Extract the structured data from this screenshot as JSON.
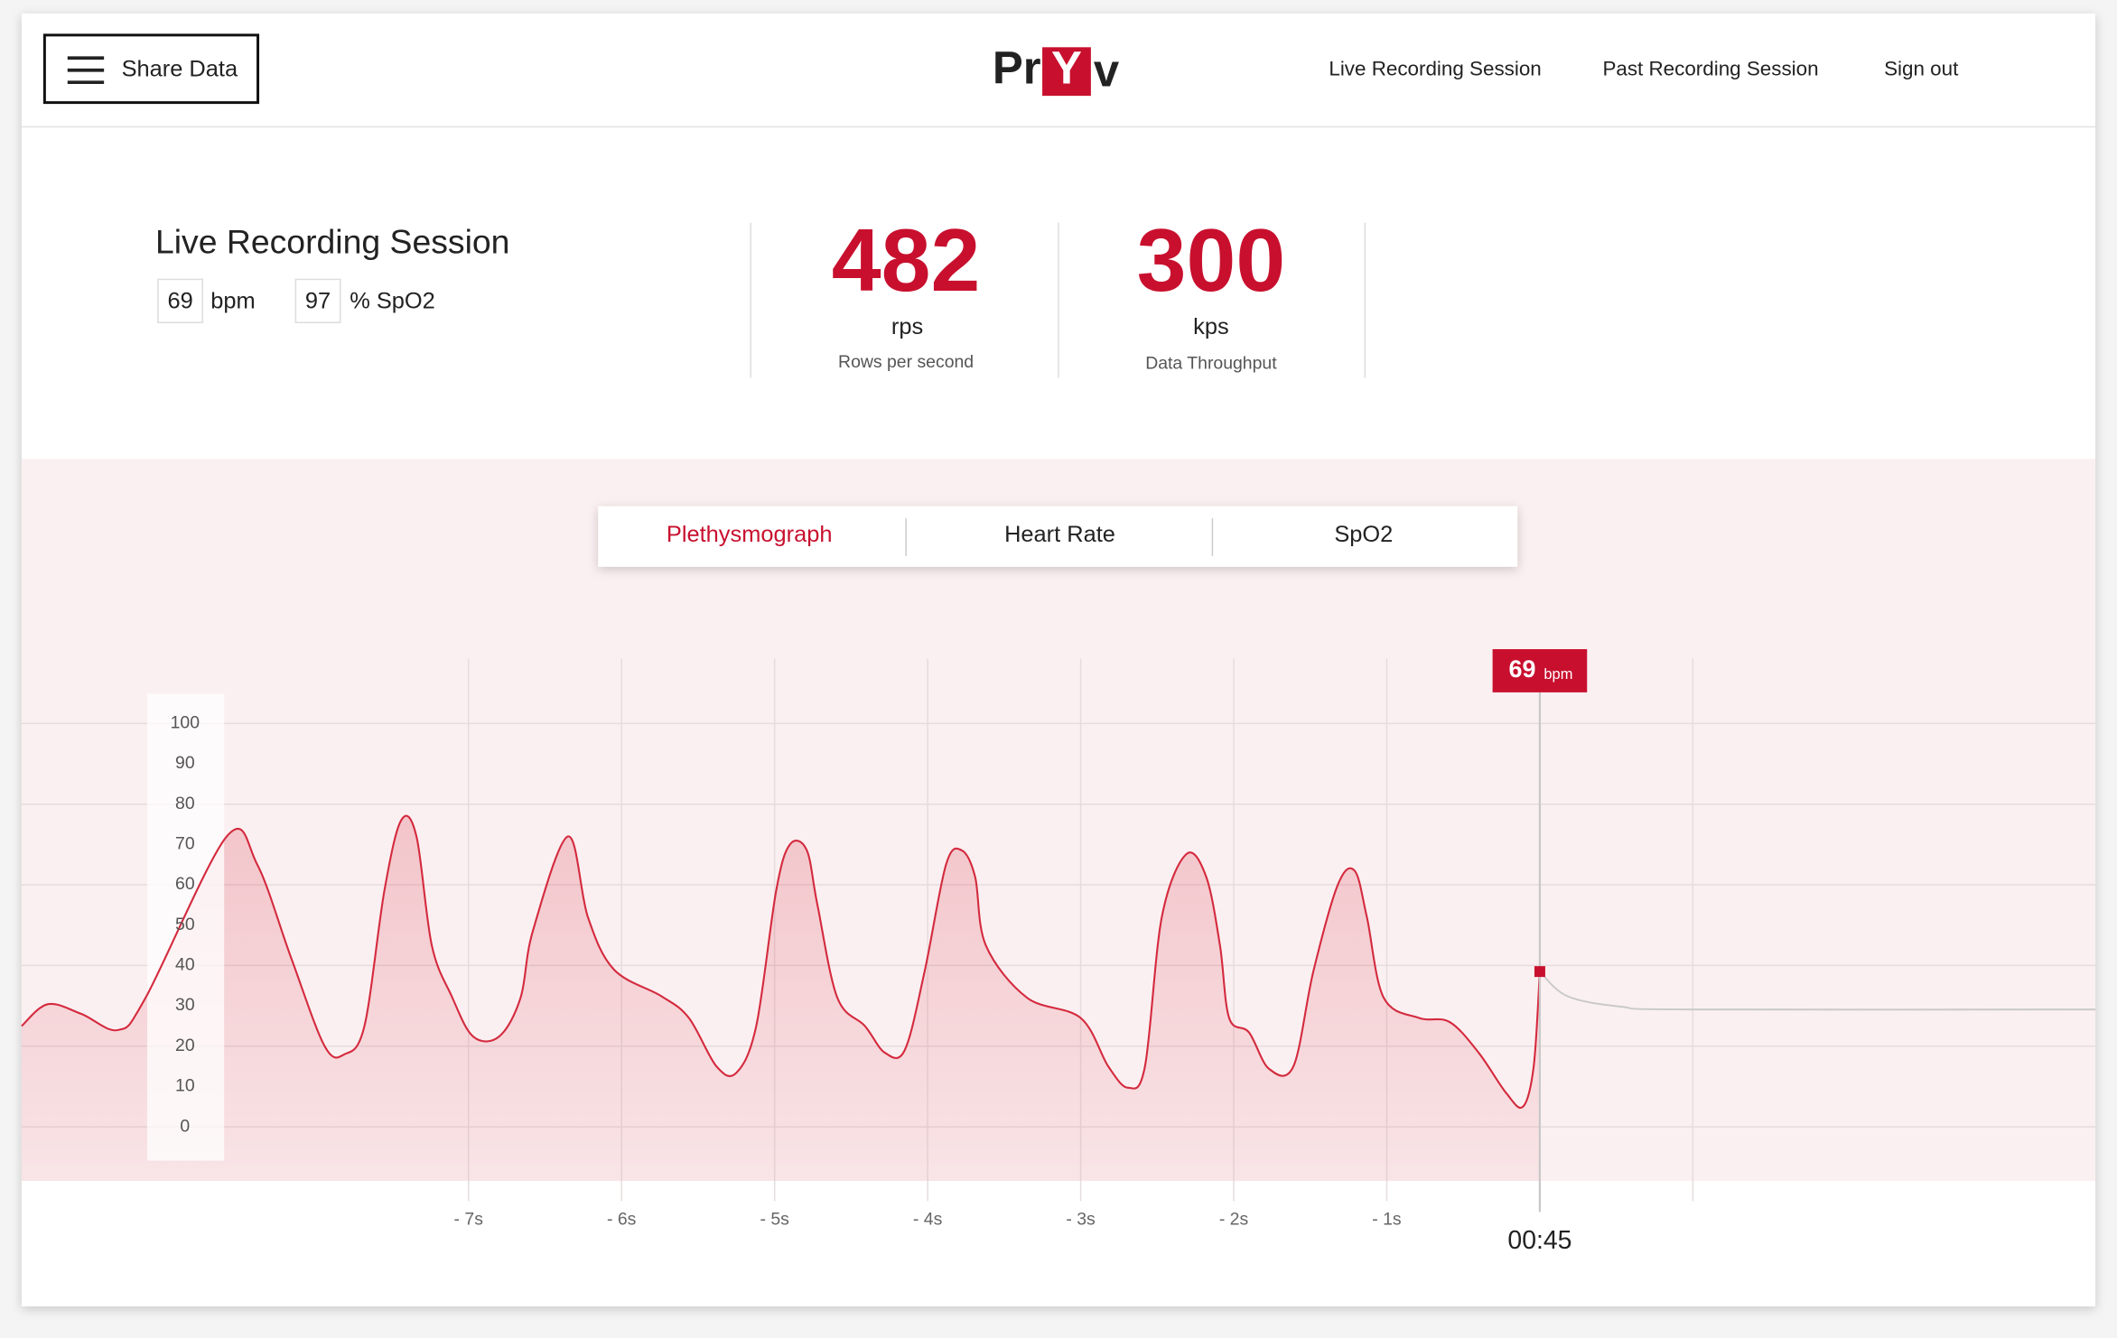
{
  "header": {
    "button": "Share Data",
    "logo": [
      "Pr",
      "Y",
      "v"
    ],
    "nav": [
      "Live Recording Session",
      "Past Recording Session",
      "Sign out"
    ]
  },
  "session": {
    "title": "Live Recording Session",
    "bpm": 69,
    "bpm_unit": "bpm",
    "spo2": 97,
    "spo2_unit": "% SpO2"
  },
  "stats": [
    {
      "value": 482,
      "unit": "rps",
      "label": "Rows per second"
    },
    {
      "value": 300,
      "unit": "kps",
      "label": "Data Throughput"
    }
  ],
  "tabs": {
    "items": [
      "Plethysmograph",
      "Heart Rate",
      "SpO2"
    ],
    "active": 0
  },
  "chart_data": {
    "type": "line",
    "color": "#d42a3e",
    "x": [
      -9.92,
      -9.75,
      -9.53,
      -9.29,
      -9.11,
      -8.58,
      -8.38,
      -8.16,
      -7.94,
      -7.81,
      -7.68,
      -7.55,
      -7.44,
      -7.34,
      -7.24,
      -7.11,
      -6.97,
      -6.8,
      -6.66,
      -6.58,
      -6.35,
      -6.22,
      -6.05,
      -5.74,
      -5.56,
      -5.38,
      -5.25,
      -5.12,
      -4.99,
      -4.9,
      -4.79,
      -4.72,
      -4.59,
      -4.41,
      -4.28,
      -4.15,
      -4.02,
      -3.88,
      -3.78,
      -3.69,
      -3.62,
      -3.35,
      -3.0,
      -2.82,
      -2.69,
      -2.58,
      -2.47,
      -2.31,
      -2.18,
      -2.09,
      -2.03,
      -1.9,
      -1.77,
      -1.61,
      -1.48,
      -1.32,
      -1.21,
      -1.13,
      -1.02,
      -0.79,
      -0.59,
      -0.4,
      -0.22,
      -0.11,
      -0.04,
      0
    ],
    "values": [
      25,
      30.4,
      28,
      24,
      32,
      72,
      65,
      42,
      20,
      18,
      25,
      58.5,
      76,
      72,
      45,
      32.4,
      22.4,
      22.4,
      32,
      48.5,
      72,
      52,
      39,
      32.4,
      27,
      15,
      13.4,
      25,
      58.5,
      70,
      68.6,
      55,
      32,
      25,
      18.4,
      19,
      38.5,
      65,
      68.6,
      62,
      45,
      32,
      27,
      15,
      9.7,
      15,
      52,
      67.6,
      62,
      45,
      27,
      23.4,
      14.4,
      15,
      38.5,
      60,
      63.5,
      52,
      32,
      27,
      26,
      18.4,
      8.4,
      5,
      15,
      38.5
    ],
    "projection": {
      "color": "#c9c9c9",
      "x": [
        0,
        0.18,
        0.53,
        0.97,
        3.63
      ],
      "values": [
        38.5,
        32.4,
        29.8,
        29.1,
        29.1
      ]
    },
    "xlim": [
      -9.92,
      3.63
    ],
    "ylim": [
      -13.4,
      165.6
    ],
    "yticks": [
      0,
      10,
      20,
      30,
      40,
      50,
      60,
      70,
      80,
      90,
      100
    ],
    "ygrid": [
      0,
      20,
      40,
      60,
      80,
      100
    ],
    "xticks": [
      {
        "value": -7,
        "label": "- 7s"
      },
      {
        "value": -6,
        "label": "- 6s"
      },
      {
        "value": -5,
        "label": "- 5s"
      },
      {
        "value": -4,
        "label": "- 4s"
      },
      {
        "value": -3,
        "label": "- 3s"
      },
      {
        "value": -2,
        "label": "- 2s"
      },
      {
        "value": -1,
        "label": "- 1s"
      }
    ],
    "xgrid": [
      -7,
      -6,
      -5,
      -4,
      -3,
      -2,
      -1,
      0,
      1
    ],
    "cursor": {
      "x": 0,
      "label": "00:45",
      "value": 69,
      "unit": "bpm"
    }
  }
}
